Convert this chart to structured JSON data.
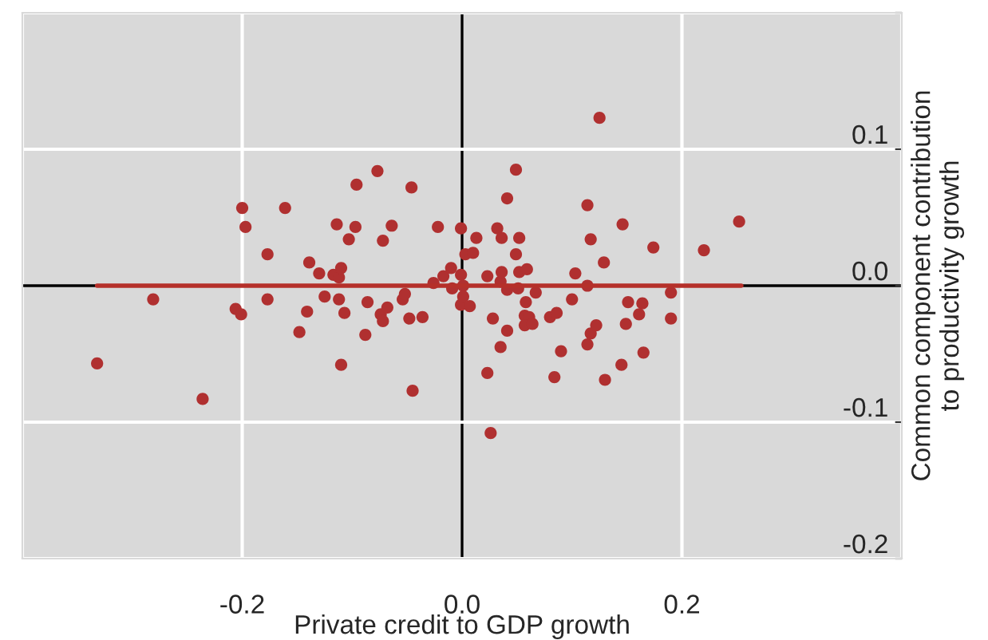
{
  "chart_data": {
    "type": "scatter",
    "xlabel": "Private credit to GDP growth",
    "ylabel": "Common component contribution\nto productivity growth",
    "xlim": [
      -0.4,
      0.4
    ],
    "ylim": [
      -0.2,
      0.2
    ],
    "xticks": [
      {
        "value": -0.4,
        "label": null
      },
      -0.2,
      {
        "value": 0.0,
        "label": "0.0"
      },
      0.2,
      {
        "value": 0.4,
        "label": null
      }
    ],
    "yticks": [
      -0.2,
      -0.1,
      {
        "value": 0.0,
        "label": "0.0"
      },
      0.1,
      {
        "value": 0.2,
        "label": null
      }
    ],
    "grid": true,
    "series": [
      {
        "type": "scatter",
        "marker": "circle",
        "color": "#b03030",
        "x": [
          -0.281,
          -0.332,
          -0.236,
          -0.206,
          -0.201,
          -0.2,
          -0.197,
          -0.177,
          -0.177,
          -0.161,
          -0.148,
          -0.141,
          -0.139,
          -0.13,
          -0.125,
          -0.117,
          -0.114,
          -0.112,
          -0.112,
          -0.11,
          -0.11,
          -0.107,
          -0.103,
          -0.097,
          -0.096,
          -0.088,
          -0.086,
          -0.077,
          -0.074,
          -0.072,
          -0.072,
          -0.068,
          -0.064,
          -0.054,
          -0.052,
          -0.048,
          -0.046,
          -0.045,
          -0.036,
          -0.026,
          -0.022,
          -0.017,
          -0.01,
          -0.009,
          -0.001,
          -0.001,
          -0.001,
          0.001,
          0.001,
          0.003,
          0.007,
          0.01,
          0.013,
          0.023,
          0.032,
          0.035,
          0.036,
          0.036,
          0.041,
          0.041,
          0.049,
          0.049,
          0.051,
          0.052,
          0.052,
          0.059,
          0.058,
          0.067,
          0.1,
          0.103,
          0.114,
          0.114,
          0.117,
          0.125,
          0.129,
          0.146,
          0.151,
          0.164,
          0.174,
          0.19,
          0.22,
          0.252,
          0.028,
          0.041,
          0.035,
          0.057,
          0.061,
          0.057,
          0.064,
          0.08,
          0.086,
          0.09,
          0.084,
          0.114,
          0.117,
          0.122,
          0.161,
          0.149,
          0.19,
          0.165,
          0.145,
          0.13,
          0.023,
          0.026
        ],
        "values": [
          -0.01,
          -0.057,
          -0.083,
          -0.017,
          -0.021,
          0.057,
          0.043,
          0.023,
          -0.01,
          0.057,
          -0.034,
          -0.019,
          0.017,
          0.009,
          -0.008,
          0.008,
          0.045,
          0.006,
          -0.01,
          0.013,
          -0.058,
          -0.02,
          0.034,
          0.043,
          0.074,
          -0.036,
          -0.012,
          0.084,
          -0.021,
          0.033,
          -0.026,
          -0.016,
          0.044,
          -0.01,
          -0.006,
          -0.024,
          0.072,
          -0.077,
          -0.023,
          0.002,
          0.043,
          0.007,
          0.013,
          -0.002,
          0.042,
          0.008,
          -0.014,
          0.0,
          -0.008,
          0.023,
          -0.015,
          0.024,
          0.035,
          0.007,
          0.042,
          0.003,
          0.035,
          0.01,
          0.064,
          -0.003,
          0.085,
          0.023,
          -0.002,
          0.035,
          0.01,
          0.012,
          -0.012,
          -0.005,
          -0.01,
          0.009,
          0.059,
          0.0,
          0.034,
          0.123,
          0.017,
          0.045,
          -0.012,
          -0.013,
          0.028,
          -0.005,
          0.026,
          0.047,
          -0.024,
          -0.033,
          -0.045,
          -0.022,
          -0.023,
          -0.029,
          -0.028,
          -0.023,
          -0.02,
          -0.048,
          -0.067,
          -0.043,
          -0.035,
          -0.029,
          -0.021,
          -0.028,
          -0.024,
          -0.049,
          -0.058,
          -0.069,
          -0.064,
          -0.108
        ]
      },
      {
        "type": "line",
        "color": "#b5302a",
        "x": [
          -0.332,
          0.254
        ],
        "values": [
          0.0,
          0.0
        ]
      }
    ]
  }
}
